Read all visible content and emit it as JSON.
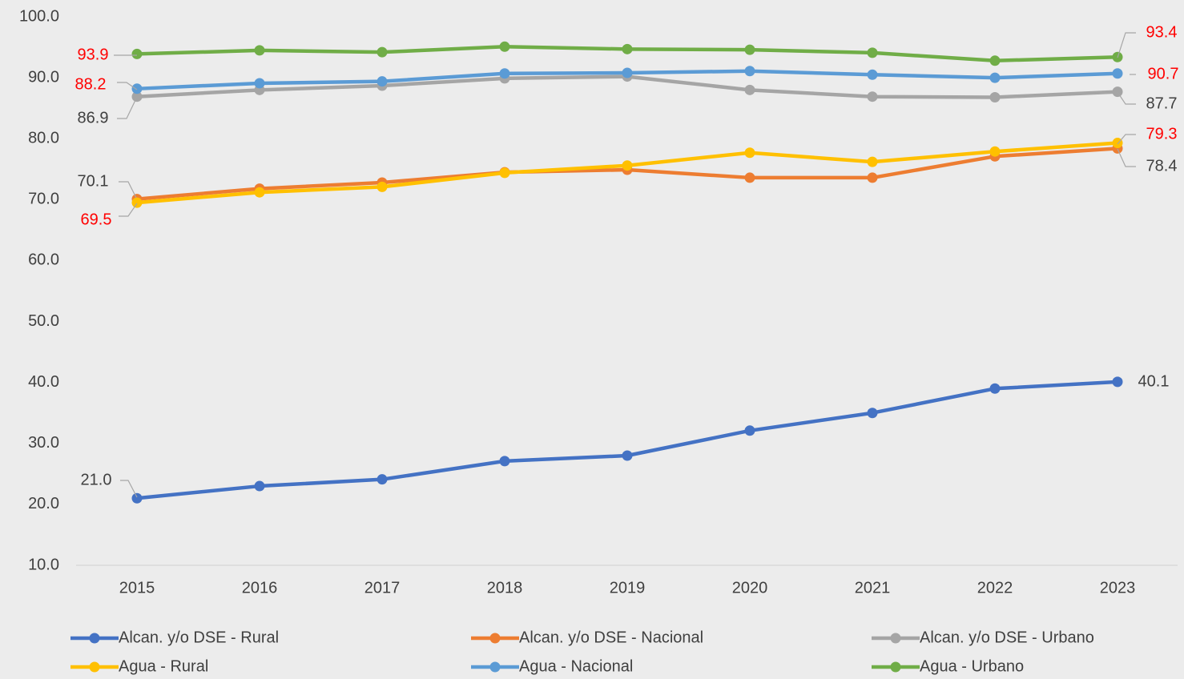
{
  "chart_data": {
    "type": "line",
    "categories": [
      "2015",
      "2016",
      "2017",
      "2018",
      "2019",
      "2020",
      "2021",
      "2022",
      "2023"
    ],
    "ylim": [
      10,
      100
    ],
    "yticks": [
      {
        "value": 10,
        "label": "10.0"
      },
      {
        "value": 20,
        "label": "20.0"
      },
      {
        "value": 30,
        "label": "30.0"
      },
      {
        "value": 40,
        "label": "40.0"
      },
      {
        "value": 50,
        "label": "50.0"
      },
      {
        "value": 60,
        "label": "60.0"
      },
      {
        "value": 70,
        "label": "70.0"
      },
      {
        "value": 80,
        "label": "80.0"
      },
      {
        "value": 90,
        "label": "90.0"
      },
      {
        "value": 100,
        "label": "100.0"
      }
    ],
    "grid": false,
    "legend": "bottom",
    "series": [
      {
        "name": "Alcan. y/o DSE - Rural",
        "color": "#4472c4",
        "label_color": "#404040",
        "values": [
          21.0,
          23.0,
          24.1,
          27.1,
          28.0,
          32.1,
          35.0,
          39.0,
          40.1
        ],
        "value_labels": [
          "21.0",
          null,
          null,
          null,
          null,
          null,
          null,
          null,
          "40.1"
        ]
      },
      {
        "name": "Alcan. y/o DSE - Nacional",
        "color": "#ed7d31",
        "label_color": "#404040",
        "values": [
          70.1,
          71.8,
          72.8,
          74.5,
          74.9,
          73.6,
          73.6,
          77.1,
          78.4
        ],
        "value_labels": [
          "70.1",
          null,
          null,
          null,
          null,
          null,
          null,
          null,
          "78.4"
        ]
      },
      {
        "name": "Alcan. y/o DSE - Urbano",
        "color": "#a5a5a5",
        "label_color": "#404040",
        "values": [
          86.9,
          88.0,
          88.7,
          89.9,
          90.2,
          88.0,
          86.9,
          86.8,
          87.7
        ],
        "value_labels": [
          "86.9",
          null,
          null,
          null,
          null,
          null,
          null,
          null,
          "87.7"
        ]
      },
      {
        "name": "Agua - Rural",
        "color": "#ffc000",
        "label_color": "#ff0000",
        "values": [
          69.5,
          71.2,
          72.1,
          74.4,
          75.6,
          77.7,
          76.2,
          77.9,
          79.3
        ],
        "value_labels": [
          "69.5",
          null,
          null,
          null,
          null,
          null,
          null,
          null,
          "79.3"
        ]
      },
      {
        "name": "Agua - Nacional",
        "color": "#5b9bd5",
        "label_color": "#ff0000",
        "values": [
          88.2,
          89.1,
          89.4,
          90.7,
          90.8,
          91.1,
          90.5,
          90.0,
          90.7
        ],
        "value_labels": [
          "88.2",
          null,
          null,
          null,
          null,
          null,
          null,
          null,
          "90.7"
        ]
      },
      {
        "name": "Agua - Urbano",
        "color": "#70ad47",
        "label_color": "#ff0000",
        "values": [
          93.9,
          94.5,
          94.2,
          95.1,
          94.7,
          94.6,
          94.1,
          92.8,
          93.4
        ],
        "value_labels": [
          "93.9",
          null,
          null,
          null,
          null,
          null,
          null,
          null,
          "93.4"
        ]
      }
    ]
  }
}
